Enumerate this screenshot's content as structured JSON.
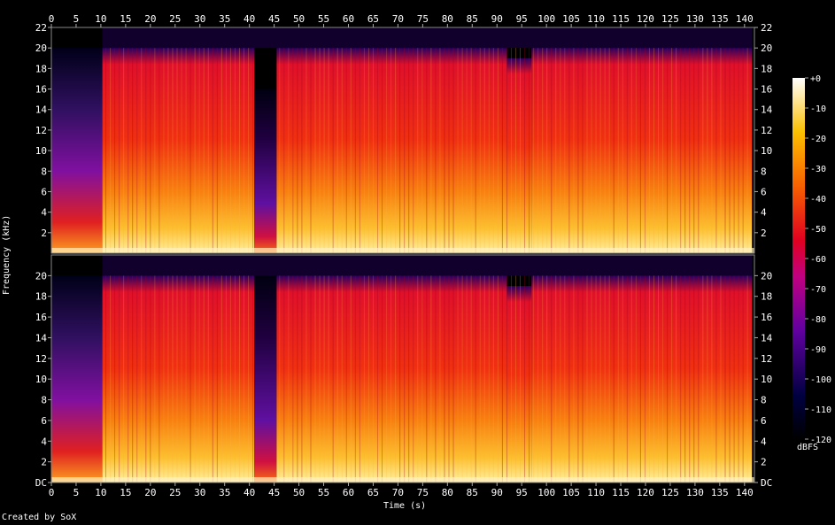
{
  "chart_data": {
    "type": "heatmap",
    "subtype": "spectrogram",
    "xlabel": "Time (s)",
    "ylabel": "Frequency (kHz)",
    "credit": "Created by SoX",
    "x_ticks": [
      "0",
      "5",
      "10",
      "15",
      "20",
      "25",
      "30",
      "35",
      "40",
      "45",
      "50",
      "55",
      "60",
      "65",
      "70",
      "75",
      "80",
      "85",
      "90",
      "95",
      "100",
      "105",
      "110",
      "115",
      "120",
      "125",
      "130",
      "135",
      "140"
    ],
    "xlim": [
      0,
      142
    ],
    "channels": [
      {
        "y_ticks": [
          "2",
          "4",
          "6",
          "8",
          "10",
          "12",
          "14",
          "16",
          "18",
          "20",
          "22"
        ]
      },
      {
        "y_ticks": [
          "DC",
          "2",
          "4",
          "6",
          "8",
          "10",
          "12",
          "14",
          "16",
          "18",
          "20"
        ]
      }
    ],
    "ylim_khz": [
      0,
      22
    ],
    "colorbar": {
      "unit": "dBFS",
      "ticks": [
        "+0",
        "-10",
        "-20",
        "-30",
        "-40",
        "-50",
        "-60",
        "-70",
        "-80",
        "-90",
        "-100",
        "-110",
        "-120"
      ],
      "range": [
        -120,
        0
      ]
    },
    "segments": [
      {
        "t0": 0,
        "t1": 10.3,
        "level": "sparse"
      },
      {
        "t0": 10.3,
        "t1": 41,
        "level": "loud"
      },
      {
        "t0": 41,
        "t1": 45.5,
        "level": "quiet"
      },
      {
        "t0": 45.5,
        "t1": 92,
        "level": "loud"
      },
      {
        "t0": 92,
        "t1": 97,
        "level": "dip"
      },
      {
        "t0": 97,
        "t1": 141.5,
        "level": "loud"
      }
    ]
  }
}
